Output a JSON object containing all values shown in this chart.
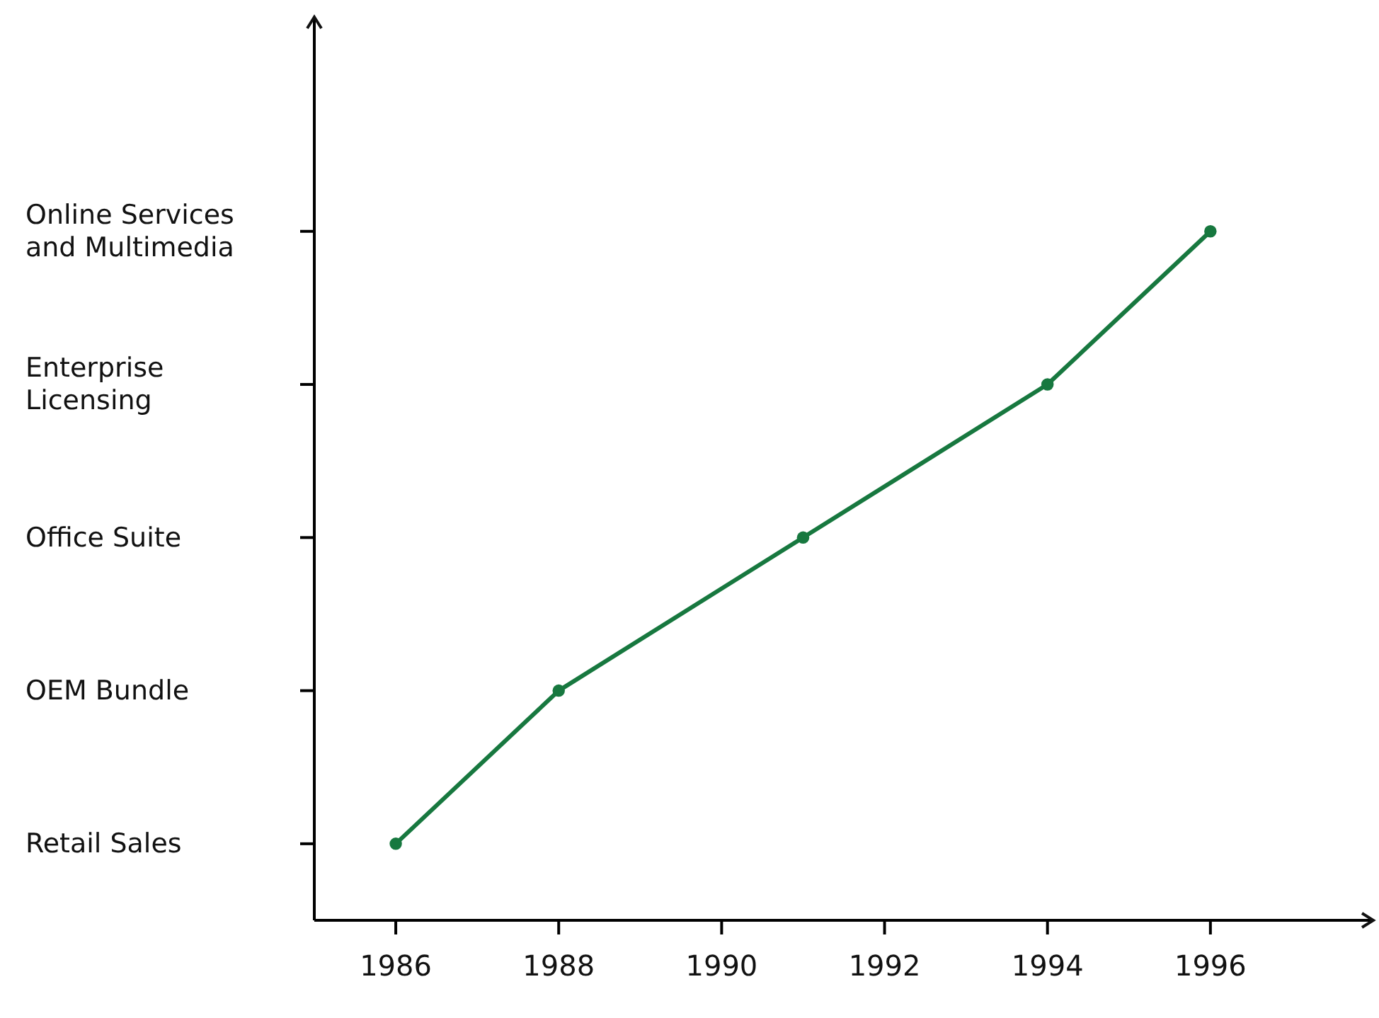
{
  "chart_data": {
    "type": "line",
    "orientation": "horizontal",
    "categories": [
      "Online Services and Multimedia",
      "Enterprise Licensing",
      "Office Suite",
      "OEM Bundle",
      "Retail Sales"
    ],
    "series": [
      {
        "color": "#17783f",
        "values": [
          1996,
          1994,
          1991,
          1988,
          1986
        ]
      }
    ],
    "xlim": [
      1985,
      1998
    ],
    "xticks": [
      1986,
      1988,
      1990,
      1992,
      1994,
      1996
    ],
    "marker": "circle",
    "line_style": "solid"
  }
}
